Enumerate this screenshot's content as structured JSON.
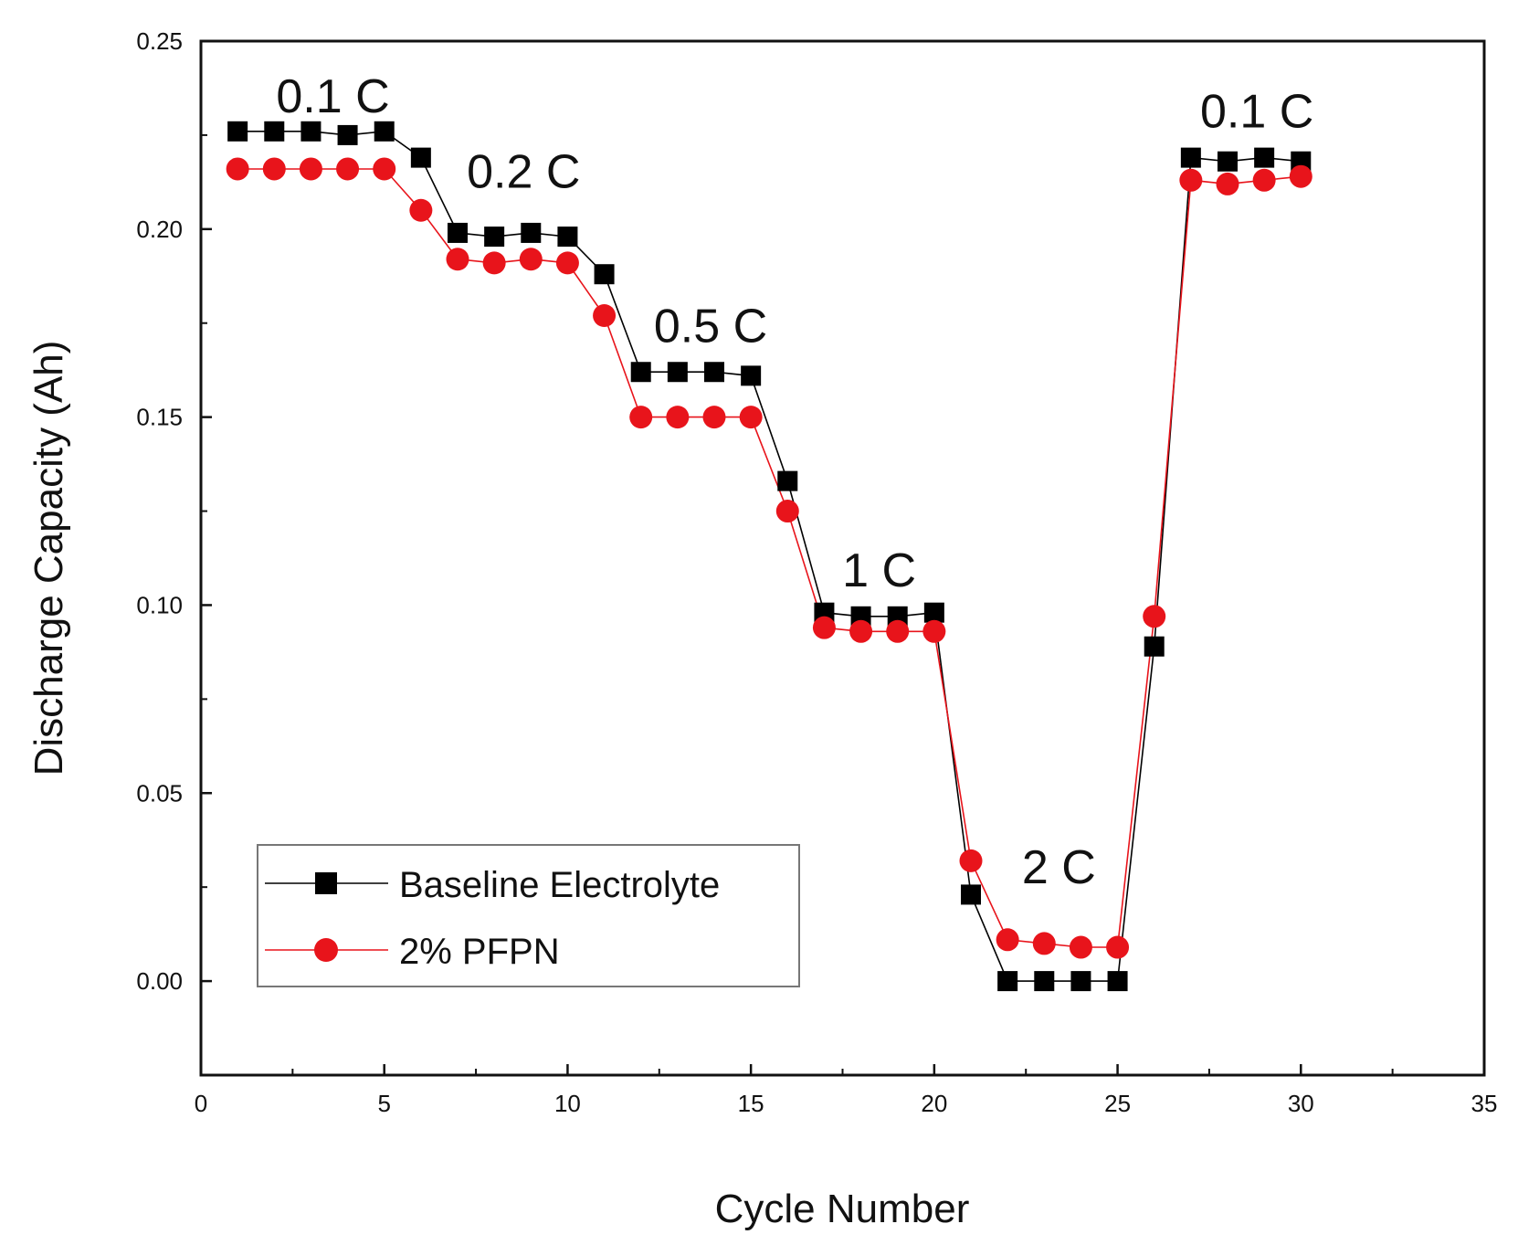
{
  "chart_data": {
    "type": "line",
    "xlabel": "Cycle Number",
    "ylabel": "Discharge Capacity (Ah)",
    "xlim": [
      0,
      35
    ],
    "ylim": [
      -0.025,
      0.25
    ],
    "xticks": [
      0,
      5,
      10,
      15,
      20,
      25,
      30,
      35
    ],
    "xtick_labels": [
      "0",
      "5",
      "10",
      "15",
      "20",
      "25",
      "30",
      "35"
    ],
    "yticks": [
      0.0,
      0.05,
      0.1,
      0.15,
      0.2,
      0.25
    ],
    "ytick_labels": [
      "0.00",
      "0.05",
      "0.10",
      "0.15",
      "0.20",
      "0.25"
    ],
    "grid": false,
    "legend_position": "bottom-left",
    "x": [
      1,
      2,
      3,
      4,
      5,
      6,
      7,
      8,
      9,
      10,
      11,
      12,
      13,
      14,
      15,
      16,
      17,
      18,
      19,
      20,
      21,
      22,
      23,
      24,
      25,
      26,
      27,
      28,
      29,
      30
    ],
    "series": [
      {
        "name": "Baseline Electrolyte",
        "marker": "square",
        "color": "#000000",
        "values": [
          0.226,
          0.226,
          0.226,
          0.225,
          0.226,
          0.219,
          0.199,
          0.198,
          0.199,
          0.198,
          0.188,
          0.162,
          0.162,
          0.162,
          0.161,
          0.133,
          0.098,
          0.097,
          0.097,
          0.098,
          0.023,
          0.0,
          0.0,
          0.0,
          0.0,
          0.089,
          0.219,
          0.218,
          0.219,
          0.218
        ]
      },
      {
        "name": "2% PFPN",
        "marker": "circle",
        "color": "#e8141b",
        "values": [
          0.216,
          0.216,
          0.216,
          0.216,
          0.216,
          0.205,
          0.192,
          0.191,
          0.192,
          0.191,
          0.177,
          0.15,
          0.15,
          0.15,
          0.15,
          0.125,
          0.094,
          0.093,
          0.093,
          0.093,
          0.032,
          0.011,
          0.01,
          0.009,
          0.009,
          0.097,
          0.213,
          0.212,
          0.213,
          0.214
        ]
      }
    ],
    "annotations": [
      {
        "text": "0.1 C",
        "x": 3.6,
        "y": 0.231
      },
      {
        "text": "0.2 C",
        "x": 8.8,
        "y": 0.211
      },
      {
        "text": "0.5 C",
        "x": 13.9,
        "y": 0.17
      },
      {
        "text": "1 C",
        "x": 18.5,
        "y": 0.105
      },
      {
        "text": "2 C",
        "x": 23.4,
        "y": 0.026
      },
      {
        "text": "0.1 C",
        "x": 28.8,
        "y": 0.227
      }
    ]
  }
}
